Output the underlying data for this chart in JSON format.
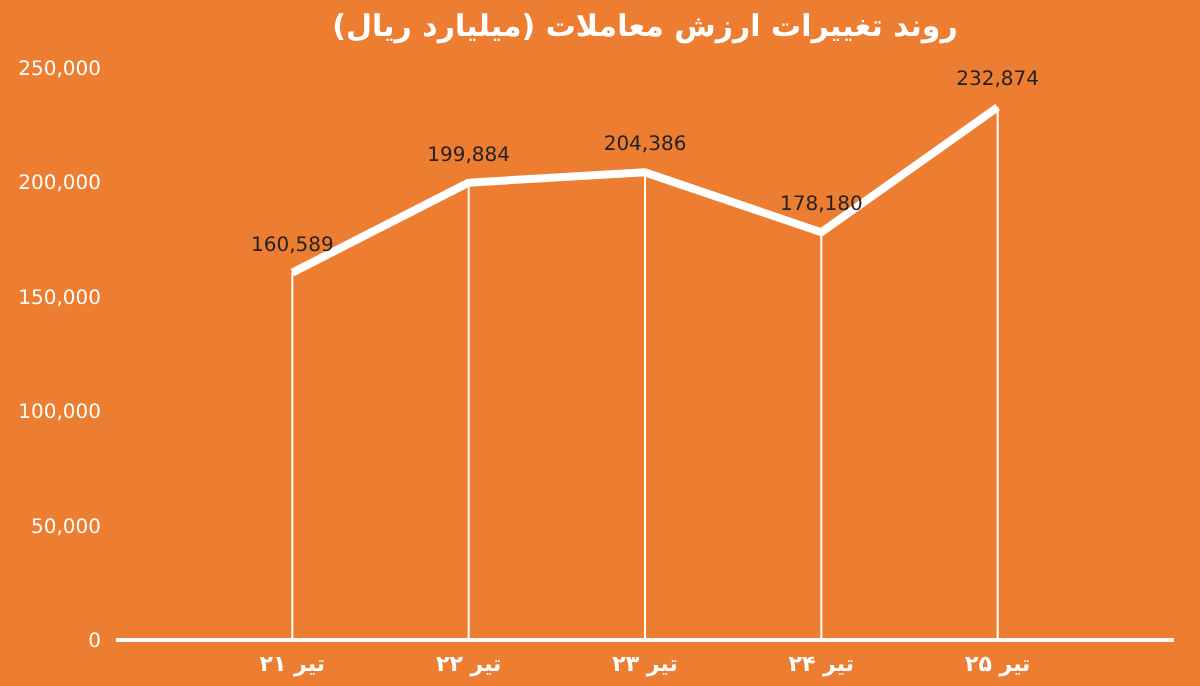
{
  "chart_data": {
    "type": "line",
    "title": "روند تغییرات ارزش معاملات (میلیارد ریال)",
    "categories": [
      "۲۱ تیر",
      "۲۲ تیر",
      "۲۳ تیر",
      "۲۴ تیر",
      "۲۵ تیر"
    ],
    "series": [
      {
        "color": "#ffffff",
        "values": [
          160589,
          199884,
          204386,
          178180,
          232874
        ],
        "value_labels": [
          "160,589",
          "199,884",
          "204,386",
          "178,180",
          "232,874"
        ]
      }
    ],
    "ylim": [
      0,
      250000
    ],
    "yticks": [
      0,
      {
        "value": 50000,
        "label": "50,000"
      },
      {
        "value": 100000,
        "label": "100,000"
      },
      {
        "value": 150000,
        "label": "150,000"
      },
      {
        "value": 200000,
        "label": "200,000"
      },
      {
        "value": 250000,
        "label": "250,000"
      }
    ],
    "grid": "x",
    "legend": false,
    "marker": "none",
    "line_style": "solid"
  }
}
